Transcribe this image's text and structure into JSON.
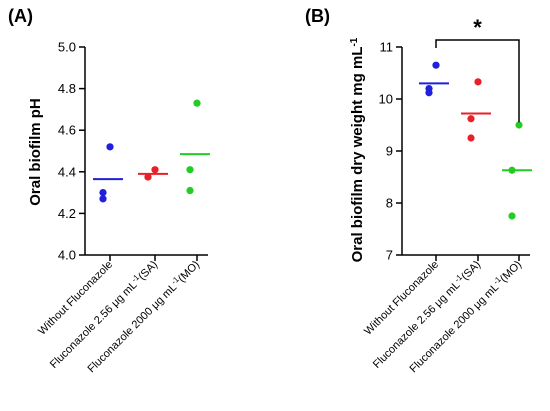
{
  "chart_data": [
    {
      "type": "scatter",
      "panel_label": "(A)",
      "ylabel": "Oral biofilm pH",
      "ylim": [
        4.0,
        5.0
      ],
      "yticks": [
        "4.0",
        "4.2",
        "4.4",
        "4.6",
        "4.8",
        "5.0"
      ],
      "categories": [
        {
          "main": "Without Fluconazole",
          "sup": "",
          "tail": ""
        },
        {
          "main": "Fluconazole 2.56 μg mL",
          "sup": "-1",
          "tail": "(SA)"
        },
        {
          "main": "Fluconazole 2000 μg mL",
          "sup": "-1",
          "tail": "(MO)"
        }
      ],
      "series": [
        {
          "color": "#1f1fdc",
          "points": [
            4.52,
            4.3,
            4.27
          ],
          "mean": 4.365
        },
        {
          "color": "#e8202a",
          "points": [
            4.41,
            4.375,
            4.375
          ],
          "mean": 4.39
        },
        {
          "color": "#22cc22",
          "points": [
            4.73,
            4.41,
            4.31
          ],
          "mean": 4.485
        }
      ]
    },
    {
      "type": "scatter",
      "panel_label": "(B)",
      "ylabel": "Oral biofilm dry weight mg mL",
      "ylabel_sup": "-1",
      "ylim": [
        7,
        11
      ],
      "yticks": [
        "7",
        "8",
        "9",
        "10",
        "11"
      ],
      "categories": [
        {
          "main": "Without Fluconazole",
          "sup": "",
          "tail": ""
        },
        {
          "main": "Fluconazole 2.56 μg mL",
          "sup": "-1",
          "tail": "(SA)"
        },
        {
          "main": "Fluconazole 2000 μg mL",
          "sup": "-1",
          "tail": "(MO)"
        }
      ],
      "series": [
        {
          "color": "#1f1fdc",
          "points": [
            10.65,
            10.2,
            10.12
          ],
          "mean": 10.3
        },
        {
          "color": "#e8202a",
          "points": [
            10.33,
            9.62,
            9.25
          ],
          "mean": 9.72
        },
        {
          "color": "#22cc22",
          "points": [
            9.5,
            8.63,
            7.75
          ],
          "mean": 8.63
        }
      ],
      "significance": {
        "from": 0,
        "to": 2,
        "label": "*"
      }
    }
  ]
}
